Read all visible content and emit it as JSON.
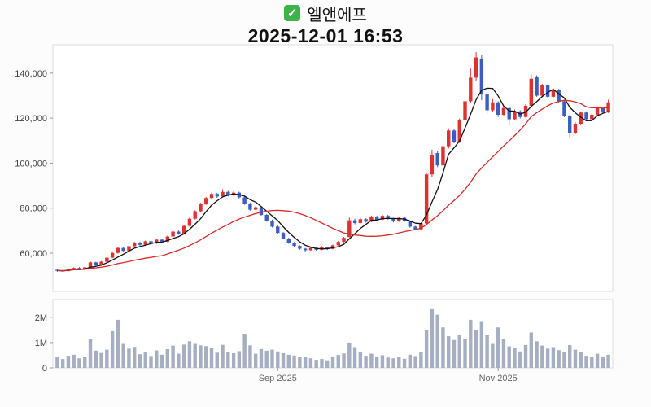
{
  "header": {
    "checkbox_glyph": "✓",
    "title": "엘앤에프",
    "datetime": "2025-12-01 16:53"
  },
  "colors": {
    "up": "#e03131",
    "down": "#3b5fc0",
    "volume_bar": "#a6aec2",
    "border": "#dcdcdc",
    "tick": "#999999",
    "checkbox_green": "#3cb44a",
    "plot_bg": "#ffffff"
  },
  "chart_data": {
    "type": "candlestick",
    "title": "엘앤에프",
    "timestamp": "2025-12-01 16:53",
    "legend": "none",
    "grid": false,
    "price_axis": {
      "range": [
        43000,
        152600
      ],
      "ticks": [
        60000,
        80000,
        100000,
        120000,
        140000
      ],
      "tick_labels": [
        "60,000",
        "80,000",
        "100,000",
        "120,000",
        "140,000"
      ]
    },
    "volume_axis": {
      "range": [
        0,
        2700000
      ],
      "ticks": [
        0,
        1000000,
        2000000
      ],
      "tick_labels": [
        "0",
        "1M",
        "2M"
      ]
    },
    "x_axis": {
      "ticks": [
        {
          "label": "Sep 2025",
          "date": "2025-09-01"
        },
        {
          "label": "Nov 2025",
          "date": "2025-11-03"
        }
      ]
    },
    "moving_averages": [
      {
        "name": "ma-short",
        "window": 5,
        "color": "#111111"
      },
      {
        "name": "ma-long",
        "window": 20,
        "color": "#d42a2a"
      }
    ],
    "columns": [
      "date",
      "open",
      "high",
      "low",
      "close",
      "volume"
    ],
    "rows": [
      [
        "2025-07-04",
        52600,
        52900,
        51700,
        52300,
        420000
      ],
      [
        "2025-07-07",
        52300,
        52700,
        51600,
        52000,
        350000
      ],
      [
        "2025-07-08",
        52000,
        53100,
        51900,
        52800,
        480000
      ],
      [
        "2025-07-09",
        52800,
        53700,
        52500,
        53400,
        520000
      ],
      [
        "2025-07-10",
        53400,
        53800,
        52600,
        52900,
        380000
      ],
      [
        "2025-07-11",
        52900,
        54000,
        52700,
        53700,
        450000
      ],
      [
        "2025-07-14",
        53800,
        56400,
        53600,
        55900,
        1150000
      ],
      [
        "2025-07-15",
        55900,
        56200,
        54300,
        54700,
        680000
      ],
      [
        "2025-07-16",
        54700,
        56500,
        54500,
        56200,
        590000
      ],
      [
        "2025-07-17",
        56200,
        58300,
        55900,
        58000,
        720000
      ],
      [
        "2025-07-18",
        58000,
        60500,
        57700,
        60100,
        1450000
      ],
      [
        "2025-07-21",
        60100,
        62800,
        59800,
        62300,
        1900000
      ],
      [
        "2025-07-22",
        62300,
        62600,
        60400,
        61000,
        980000
      ],
      [
        "2025-07-23",
        61000,
        63500,
        60800,
        63100,
        760000
      ],
      [
        "2025-07-24",
        63100,
        65000,
        62500,
        64600,
        830000
      ],
      [
        "2025-07-25",
        64600,
        65100,
        63200,
        63700,
        540000
      ],
      [
        "2025-07-28",
        63700,
        65600,
        63400,
        65300,
        610000
      ],
      [
        "2025-07-29",
        65300,
        65800,
        63900,
        64400,
        470000
      ],
      [
        "2025-07-30",
        64400,
        66400,
        64100,
        66000,
        690000
      ],
      [
        "2025-07-31",
        66000,
        66500,
        64700,
        65100,
        520000
      ],
      [
        "2025-08-01",
        65100,
        67800,
        64900,
        67400,
        740000
      ],
      [
        "2025-08-04",
        67400,
        70000,
        67100,
        69600,
        880000
      ],
      [
        "2025-08-05",
        69600,
        70100,
        68200,
        68700,
        560000
      ],
      [
        "2025-08-06",
        68700,
        72500,
        68400,
        72100,
        920000
      ],
      [
        "2025-08-07",
        72100,
        75800,
        71800,
        75300,
        1050000
      ],
      [
        "2025-08-08",
        75300,
        79100,
        75000,
        78600,
        980000
      ],
      [
        "2025-08-11",
        78600,
        82300,
        78200,
        81800,
        890000
      ],
      [
        "2025-08-12",
        81800,
        85000,
        81400,
        84500,
        860000
      ],
      [
        "2025-08-13",
        84500,
        86900,
        83800,
        86300,
        790000
      ],
      [
        "2025-08-14",
        86300,
        86800,
        84600,
        85200,
        600000
      ],
      [
        "2025-08-18",
        85200,
        88400,
        84900,
        87200,
        910000
      ],
      [
        "2025-08-19",
        87200,
        87700,
        85200,
        85800,
        640000
      ],
      [
        "2025-08-20",
        85800,
        87600,
        85300,
        86900,
        580000
      ],
      [
        "2025-08-21",
        86900,
        87300,
        84300,
        84800,
        660000
      ],
      [
        "2025-08-22",
        84800,
        85200,
        81500,
        82000,
        1350000
      ],
      [
        "2025-08-25",
        82000,
        82400,
        78900,
        79300,
        890000
      ],
      [
        "2025-08-26",
        79300,
        81000,
        79000,
        80400,
        560000
      ],
      [
        "2025-08-27",
        80400,
        80700,
        76600,
        77000,
        740000
      ],
      [
        "2025-08-28",
        77000,
        77400,
        74000,
        74400,
        680000
      ],
      [
        "2025-08-29",
        74400,
        74900,
        71400,
        71800,
        720000
      ],
      [
        "2025-09-01",
        71800,
        72300,
        68700,
        69000,
        650000
      ],
      [
        "2025-09-02",
        69000,
        69400,
        66100,
        66500,
        580000
      ],
      [
        "2025-09-03",
        66500,
        66900,
        64200,
        64500,
        520000
      ],
      [
        "2025-09-04",
        64500,
        64900,
        62800,
        63200,
        490000
      ],
      [
        "2025-09-05",
        63200,
        63500,
        61500,
        62000,
        450000
      ],
      [
        "2025-09-08",
        62000,
        62300,
        60700,
        61300,
        430000
      ],
      [
        "2025-09-09",
        61300,
        62900,
        61100,
        62400,
        380000
      ],
      [
        "2025-09-10",
        62400,
        62700,
        61100,
        61500,
        320000
      ],
      [
        "2025-09-11",
        61500,
        63100,
        61300,
        62600,
        350000
      ],
      [
        "2025-09-12",
        62600,
        62900,
        61400,
        61900,
        300000
      ],
      [
        "2025-09-15",
        61900,
        63800,
        61700,
        63500,
        420000
      ],
      [
        "2025-09-16",
        63500,
        65400,
        63300,
        65000,
        510000
      ],
      [
        "2025-09-17",
        65000,
        67200,
        64800,
        66800,
        570000
      ],
      [
        "2025-09-18",
        67200,
        75800,
        67000,
        74600,
        1000000
      ],
      [
        "2025-09-19",
        74600,
        75300,
        72800,
        73400,
        820000
      ],
      [
        "2025-09-22",
        73400,
        75600,
        73100,
        75100,
        640000
      ],
      [
        "2025-09-23",
        75100,
        75500,
        73600,
        74000,
        480000
      ],
      [
        "2025-09-24",
        74000,
        76700,
        73800,
        76200,
        560000
      ],
      [
        "2025-09-25",
        76200,
        76600,
        74400,
        74900,
        430000
      ],
      [
        "2025-09-26",
        74900,
        77100,
        74600,
        76600,
        500000
      ],
      [
        "2025-09-29",
        76600,
        77000,
        74900,
        75300,
        410000
      ],
      [
        "2025-09-30",
        75300,
        75700,
        73700,
        74100,
        380000
      ],
      [
        "2025-10-01",
        74100,
        76100,
        73900,
        75700,
        440000
      ],
      [
        "2025-10-02",
        75700,
        76000,
        73900,
        74300,
        360000
      ],
      [
        "2025-10-10",
        74300,
        74600,
        71300,
        71800,
        520000
      ],
      [
        "2025-10-13",
        71800,
        72100,
        70100,
        70600,
        470000
      ],
      [
        "2025-10-14",
        70600,
        73500,
        70400,
        73200,
        610000
      ],
      [
        "2025-10-15",
        73200,
        95500,
        73000,
        95000,
        1500000
      ],
      [
        "2025-10-16",
        95000,
        106000,
        94000,
        103500,
        2350000
      ],
      [
        "2025-10-17",
        104500,
        105500,
        98200,
        99000,
        2100000
      ],
      [
        "2025-10-20",
        99000,
        108500,
        98500,
        107500,
        1600000
      ],
      [
        "2025-10-21",
        107500,
        115500,
        106500,
        114500,
        1250000
      ],
      [
        "2025-10-22",
        114500,
        115000,
        108800,
        109500,
        1100000
      ],
      [
        "2025-10-23",
        109500,
        119800,
        109000,
        119000,
        1300000
      ],
      [
        "2025-10-24",
        119000,
        128500,
        118500,
        127500,
        1150000
      ],
      [
        "2025-10-27",
        127500,
        142000,
        126800,
        138000,
        1900000
      ],
      [
        "2025-10-28",
        138000,
        149300,
        136500,
        147000,
        1500000
      ],
      [
        "2025-10-29",
        146500,
        148000,
        128000,
        130500,
        1850000
      ],
      [
        "2025-10-30",
        130500,
        131000,
        122000,
        123500,
        1300000
      ],
      [
        "2025-10-31",
        123500,
        128500,
        122800,
        127000,
        980000
      ],
      [
        "2025-11-03",
        127000,
        127500,
        120500,
        121500,
        1600000
      ],
      [
        "2025-11-04",
        121500,
        125500,
        120800,
        124500,
        1150000
      ],
      [
        "2025-11-05",
        124500,
        125000,
        117000,
        119500,
        850000
      ],
      [
        "2025-11-06",
        119500,
        123800,
        119000,
        123000,
        780000
      ],
      [
        "2025-11-07",
        123000,
        123500,
        119800,
        120500,
        650000
      ],
      [
        "2025-11-10",
        120500,
        126200,
        120200,
        125500,
        900000
      ],
      [
        "2025-11-11",
        125500,
        139500,
        125000,
        137500,
        1400000
      ],
      [
        "2025-11-12",
        138500,
        139000,
        129500,
        130000,
        1050000
      ],
      [
        "2025-11-13",
        130000,
        135200,
        129600,
        134500,
        880000
      ],
      [
        "2025-11-14",
        134500,
        135000,
        128800,
        129500,
        760000
      ],
      [
        "2025-11-17",
        129500,
        133200,
        129000,
        132500,
        820000
      ],
      [
        "2025-11-18",
        132500,
        133000,
        126900,
        127500,
        700000
      ],
      [
        "2025-11-19",
        127500,
        128000,
        120400,
        121000,
        640000
      ],
      [
        "2025-11-20",
        121000,
        121500,
        111500,
        113500,
        900000
      ],
      [
        "2025-11-21",
        113500,
        118200,
        112800,
        117500,
        720000
      ],
      [
        "2025-11-24",
        117500,
        123000,
        117200,
        122500,
        610000
      ],
      [
        "2025-11-25",
        122500,
        123000,
        118900,
        119500,
        480000
      ],
      [
        "2025-11-26",
        119500,
        122200,
        119200,
        121500,
        450000
      ],
      [
        "2025-11-27",
        121500,
        125200,
        121200,
        124500,
        560000
      ],
      [
        "2025-11-28",
        124500,
        125000,
        121900,
        122500,
        430000
      ],
      [
        "2025-12-01",
        122500,
        128200,
        122300,
        127000,
        520000
      ]
    ]
  }
}
